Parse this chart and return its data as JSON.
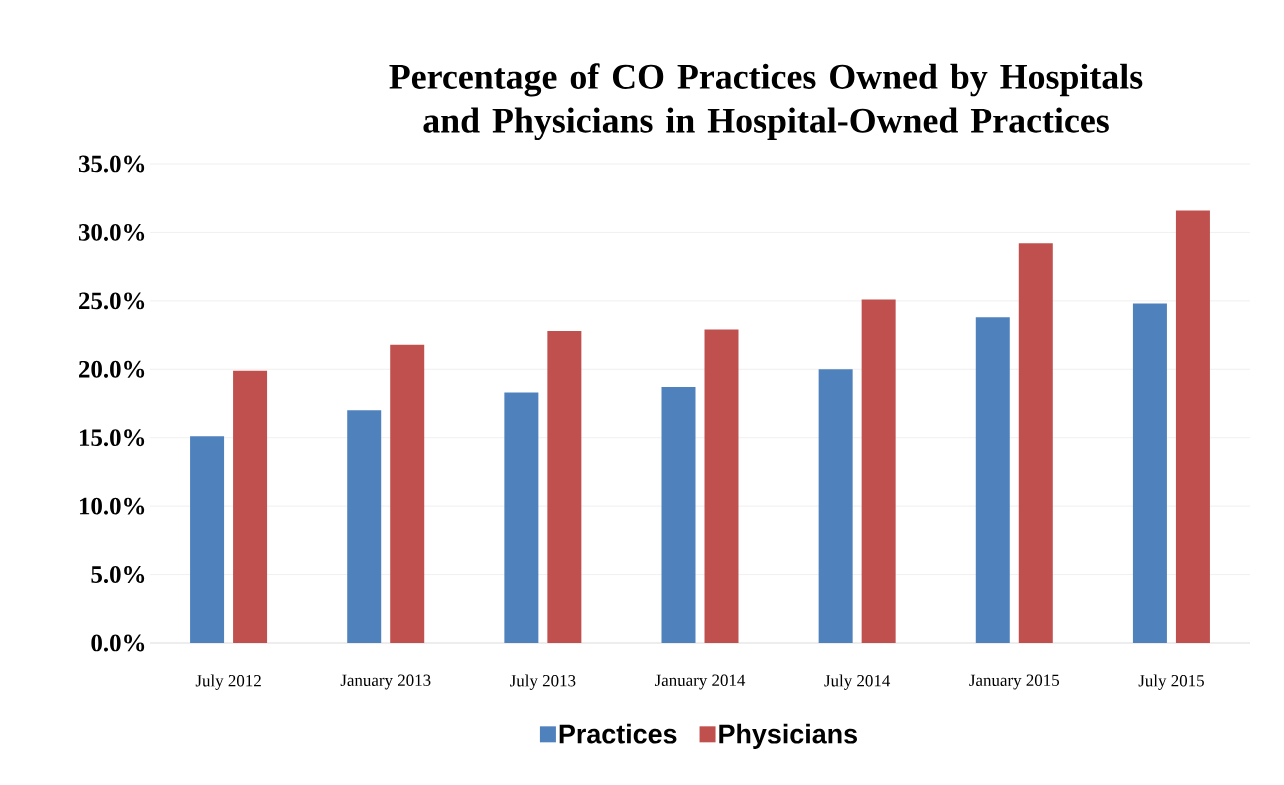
{
  "chart_data": {
    "type": "bar",
    "title": "Percentage of CO Practices Owned by Hospitals and Physicians in Hospital-Owned Practices",
    "categories": [
      "July 2012",
      "January 2013",
      "July 2013",
      "January 2014",
      "July 2014",
      "January 2015",
      "July 2015"
    ],
    "series": [
      {
        "name": "Practices",
        "color": "#4f81bd",
        "values": [
          15.1,
          17.0,
          18.3,
          18.7,
          20.0,
          23.8,
          24.8
        ]
      },
      {
        "name": "Physicians",
        "color": "#c0504d",
        "values": [
          19.9,
          21.8,
          22.8,
          22.9,
          25.1,
          29.2,
          31.6
        ]
      }
    ],
    "ylim": [
      0,
      35
    ],
    "yticks": [
      {
        "value": 0,
        "label": "0.0%"
      },
      {
        "value": 5,
        "label": "5.0%"
      },
      {
        "value": 10,
        "label": "10.0%"
      },
      {
        "value": 15,
        "label": "15.0%"
      },
      {
        "value": 20,
        "label": "20.0%"
      },
      {
        "value": 25,
        "label": "25.0%"
      },
      {
        "value": 30,
        "label": "30.0%"
      },
      {
        "value": 35,
        "label": "35.0%"
      }
    ],
    "grid": "y",
    "legend": "bottom"
  }
}
